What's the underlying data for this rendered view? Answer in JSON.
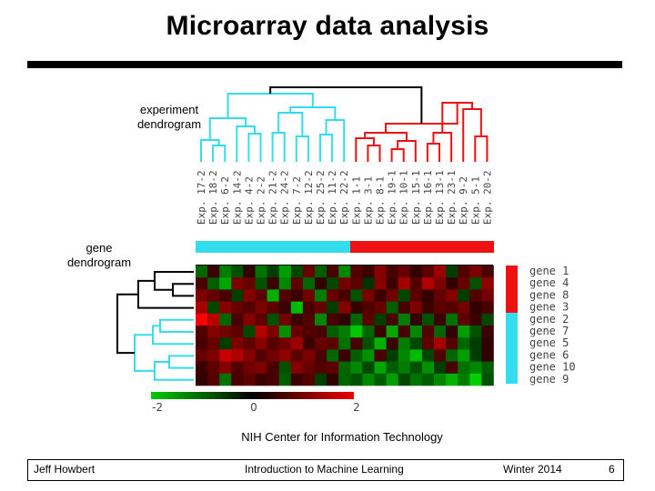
{
  "title": "Microarray data analysis",
  "labels": {
    "experiment_line1": "experiment",
    "experiment_line2": "dendrogram",
    "gene_line1": "gene",
    "gene_line2": "dendrogram",
    "credit": "NIH Center for Information Technology"
  },
  "experiments": [
    "Exp. 17-2",
    "Exp. 18-2",
    "Exp. 6-2",
    "Exp. 14-2",
    "Exp. 4-2",
    "Exp. 2-2",
    "Exp. 21-2",
    "Exp. 24-2",
    "Exp. 7-2",
    "Exp. 12-2",
    "Exp. 25-2",
    "Exp. 11-2",
    "Exp. 22-2",
    "Exp. 1-1",
    "Exp. 3-1",
    "Exp. 8-1",
    "Exp. 19-1",
    "Exp. 10-1",
    "Exp. 15-1",
    "Exp. 16-1",
    "Exp. 13-1",
    "Exp. 23-1",
    "Exp. 9-2",
    "Exp. 5-1",
    "Exp. 20-2"
  ],
  "genes": [
    "gene 1",
    "gene 4",
    "gene 8",
    "gene 3",
    "gene 2",
    "gene 7",
    "gene 5",
    "gene 6",
    "gene 10",
    "gene 9"
  ],
  "scale": {
    "min_label": "-2",
    "mid_label": "0",
    "max_label": "2"
  },
  "colors": {
    "cluster_a": "#33ddee",
    "cluster_b": "#ee1111",
    "dendro_black": "#000000"
  },
  "heatmap_values": [
    [
      -0.6,
      0.2,
      -0.8,
      -0.4,
      0.1,
      -0.7,
      -0.2,
      -1.1,
      -0.3,
      0.6,
      -0.5,
      0.3,
      -0.9,
      0.4,
      0.2,
      0.9,
      0.3,
      0.6,
      0.1,
      0.5,
      1.1,
      -0.2,
      0.4,
      0.8,
      0.3
    ],
    [
      0.3,
      -0.5,
      -1.2,
      0.8,
      0.6,
      -0.4,
      0.2,
      -0.9,
      0.5,
      -0.6,
      0.1,
      -0.3,
      0.7,
      0.5,
      -0.1,
      0.9,
      0.2,
      1.2,
      0.4,
      1.3,
      0.8,
      0.1,
      0.6,
      -0.4,
      1.0
    ],
    [
      0.8,
      0.6,
      0.3,
      -0.2,
      0.9,
      0.5,
      -1.3,
      0.4,
      0.2,
      0.7,
      -0.8,
      0.6,
      0.3,
      -0.4,
      0.8,
      0.2,
      0.7,
      -0.3,
      0.5,
      0.1,
      0.6,
      0.9,
      -0.2,
      0.4,
      0.7
    ],
    [
      1.2,
      -0.3,
      0.9,
      0.6,
      0.4,
      0.8,
      0.5,
      0.2,
      -1.4,
      0.3,
      0.6,
      -0.2,
      0.9,
      0.1,
      0.4,
      0.6,
      -0.5,
      0.3,
      0.8,
      0.2,
      0.5,
      0.4,
      0.7,
      0.1,
      0.3
    ],
    [
      2.0,
      1.4,
      -0.6,
      0.3,
      0.9,
      0.5,
      -0.4,
      0.7,
      0.2,
      0.4,
      -0.9,
      0.3,
      0.1,
      -0.6,
      0.5,
      -0.2,
      0.3,
      -0.8,
      0.1,
      -0.4,
      0.2,
      -0.7,
      0.5,
      0.2,
      -0.3
    ],
    [
      0.4,
      0.9,
      0.7,
      0.5,
      -0.3,
      1.3,
      0.8,
      -1.0,
      0.6,
      0.4,
      0.3,
      -0.5,
      -0.8,
      -1.5,
      -0.6,
      0.2,
      -1.2,
      0.3,
      -0.9,
      0.4,
      -0.6,
      0.1,
      -1.1,
      -0.4,
      0.2
    ],
    [
      0.3,
      0.6,
      -0.2,
      0.8,
      0.5,
      0.9,
      0.4,
      0.7,
      1.1,
      0.2,
      0.6,
      0.5,
      -0.7,
      0.3,
      -0.4,
      -1.3,
      0.2,
      -0.8,
      -0.3,
      0.5,
      1.2,
      0.4,
      -0.6,
      -0.2,
      0.1
    ],
    [
      0.6,
      0.8,
      1.5,
      1.3,
      0.9,
      0.4,
      0.7,
      1.0,
      0.5,
      0.8,
      0.3,
      -0.6,
      0.2,
      -0.5,
      -1.0,
      0.3,
      -0.2,
      -0.9,
      -1.4,
      -0.3,
      0.4,
      -0.6,
      -1.1,
      -0.2,
      0.1
    ],
    [
      0.2,
      0.5,
      0.9,
      0.4,
      0.7,
      0.8,
      0.3,
      -0.4,
      0.9,
      0.6,
      0.4,
      0.5,
      -0.6,
      -0.9,
      -0.3,
      -1.2,
      -0.5,
      -0.8,
      -0.4,
      -1.0,
      -0.2,
      0.3,
      -0.7,
      -0.9,
      -0.5
    ],
    [
      0.1,
      0.4,
      -0.7,
      0.3,
      0.5,
      0.2,
      0.3,
      -0.5,
      0.2,
      0.4,
      -0.2,
      0.1,
      -0.6,
      -0.4,
      -0.9,
      -0.5,
      -1.1,
      -0.3,
      -0.7,
      -0.5,
      -0.9,
      -1.3,
      -0.8,
      -1.6,
      -0.4
    ]
  ],
  "footer": {
    "author": "Jeff Howbert",
    "course": "Introduction to Machine Learning",
    "term": "Winter 2014",
    "page": "6"
  }
}
